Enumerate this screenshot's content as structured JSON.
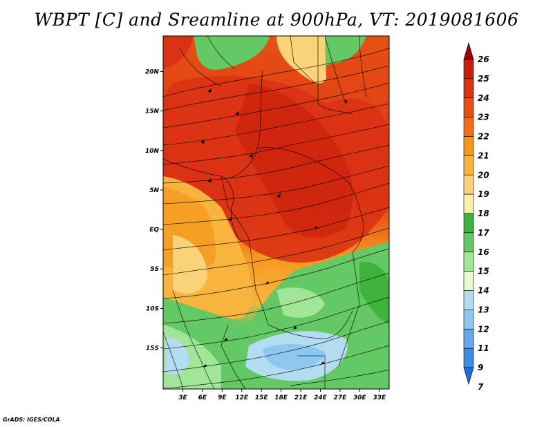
{
  "title": "WBPT [C] and Sreamline at 900hPa, VT: 2019081606",
  "credit": "GrADS: IGES/COLA",
  "map": {
    "lon_labels": [
      "3E",
      "6E",
      "9E",
      "12E",
      "15E",
      "18E",
      "21E",
      "24E",
      "27E",
      "30E",
      "33E"
    ],
    "lat_labels": [
      "20N",
      "15N",
      "10N",
      "5N",
      "EQ",
      "5S",
      "10S",
      "15S"
    ],
    "lon_range": [
      0,
      34.5
    ],
    "lat_range": [
      -20.2,
      24.5
    ]
  },
  "colorbar": {
    "levels": [
      "26",
      "25",
      "24",
      "23",
      "22",
      "21",
      "20",
      "19",
      "18",
      "17",
      "16",
      "15",
      "14",
      "13",
      "12",
      "11",
      "9",
      "7"
    ],
    "colors": [
      "#a00000",
      "#c81e0a",
      "#dc3214",
      "#e65014",
      "#f06e18",
      "#f5961e",
      "#f8b43c",
      "#fad278",
      "#fcf0a8",
      "#3cb43c",
      "#64c864",
      "#a0e696",
      "#e6fad2",
      "#b4dcf0",
      "#8cc8f0",
      "#64aaf0",
      "#3c8ce6",
      "#1e6edc"
    ]
  }
}
